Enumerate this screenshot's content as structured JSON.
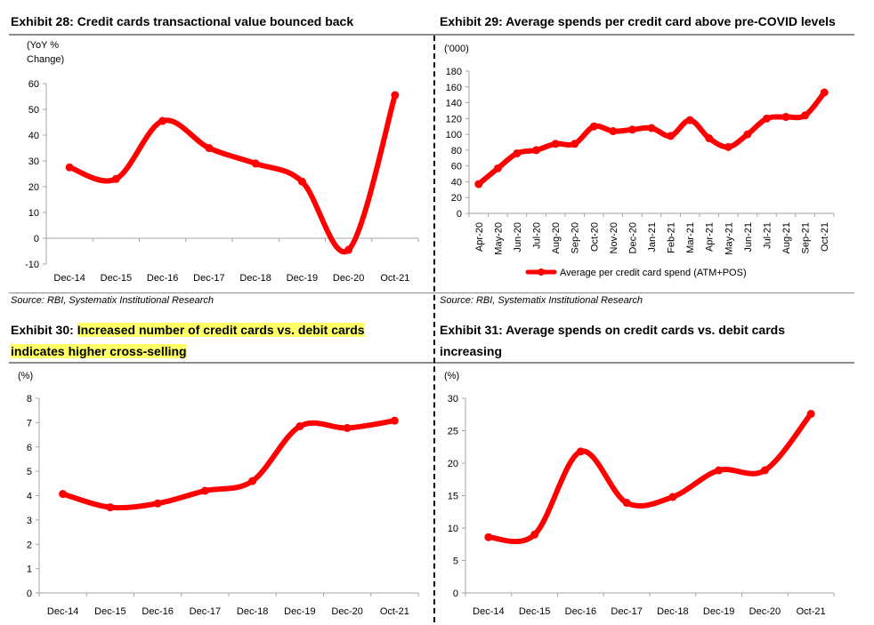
{
  "exhibits": [
    {
      "number": "Exhibit 28:",
      "title": "Credit cards transactional value bounced back"
    },
    {
      "number": "Exhibit 29:",
      "title": "Average spends per credit card above pre-COVID levels"
    },
    {
      "number": "Exhibit 30:",
      "title_line1": "Increased number of credit cards vs. debit cards",
      "title_line2": "indicates higher cross-selling"
    },
    {
      "number": "Exhibit 31:",
      "title_line1": "Average spends on credit cards vs. debit cards",
      "title_line2": "increasing"
    }
  ],
  "sources": {
    "left": "Source: RBI, Systematix Institutional Research",
    "right": "Source: RBI, Systematix Institutional Research"
  },
  "colors": {
    "series": "#ff0000",
    "axis": "#a6a6a6",
    "rule": "#8c8c8c"
  },
  "chart_data": [
    {
      "id": "exhibit28",
      "type": "line",
      "title": "Credit cards transactional value bounced back",
      "units": [
        "(YoY %",
        "Change)"
      ],
      "categories": [
        "Dec-14",
        "Dec-15",
        "Dec-16",
        "Dec-17",
        "Dec-18",
        "Dec-19",
        "Dec-20",
        "Oct-21"
      ],
      "values": [
        27.5,
        23,
        45.5,
        35,
        29,
        22,
        -4.5,
        55.5
      ],
      "ylim": [
        -10,
        60
      ],
      "yticks": [
        -10,
        0,
        10,
        20,
        30,
        40,
        50,
        60
      ]
    },
    {
      "id": "exhibit29",
      "type": "line",
      "title": "Average spends per credit card above pre-COVID levels",
      "units": [
        "('000)"
      ],
      "categories": [
        "Apr-20",
        "May-20",
        "Jun-20",
        "Jul-20",
        "Aug-20",
        "Sep-20",
        "Oct-20",
        "Nov-20",
        "Dec-20",
        "Jan-21",
        "Feb-21",
        "Mar-21",
        "Apr-21",
        "May-21",
        "Jun-21",
        "Jul-21",
        "Aug-21",
        "Sep-21",
        "Oct-21"
      ],
      "values": [
        37,
        57,
        76,
        80,
        88,
        88,
        110,
        104,
        106,
        108,
        98,
        118,
        95,
        84,
        100,
        120,
        122,
        124,
        153
      ],
      "ylim": [
        0,
        180
      ],
      "yticks": [
        0,
        20,
        40,
        60,
        80,
        100,
        120,
        140,
        160,
        180
      ],
      "legend": "Average per credit card spend (ATM+POS)"
    },
    {
      "id": "exhibit30",
      "type": "line",
      "title": "Increased number of credit cards vs. debit cards indicates higher cross-selling",
      "units": [
        "(%)"
      ],
      "categories": [
        "Dec-14",
        "Dec-15",
        "Dec-16",
        "Dec-17",
        "Dec-18",
        "Dec-19",
        "Dec-20",
        "Oct-21"
      ],
      "values": [
        4.07,
        3.52,
        3.68,
        4.2,
        4.6,
        6.85,
        6.78,
        7.08
      ],
      "ylim": [
        0,
        8
      ],
      "yticks": [
        0,
        1,
        2,
        3,
        4,
        5,
        6,
        7,
        8
      ]
    },
    {
      "id": "exhibit31",
      "type": "line",
      "title": "Average spends on credit cards vs. debit cards increasing",
      "units": [
        "(%)"
      ],
      "categories": [
        "Dec-14",
        "Dec-15",
        "Dec-16",
        "Dec-17",
        "Dec-18",
        "Dec-19",
        "Dec-20",
        "Oct-21"
      ],
      "values": [
        8.6,
        9.0,
        21.8,
        13.9,
        14.8,
        18.9,
        18.9,
        27.6
      ],
      "ylim": [
        0,
        30
      ],
      "yticks": [
        0,
        5,
        10,
        15,
        20,
        25,
        30
      ]
    }
  ]
}
